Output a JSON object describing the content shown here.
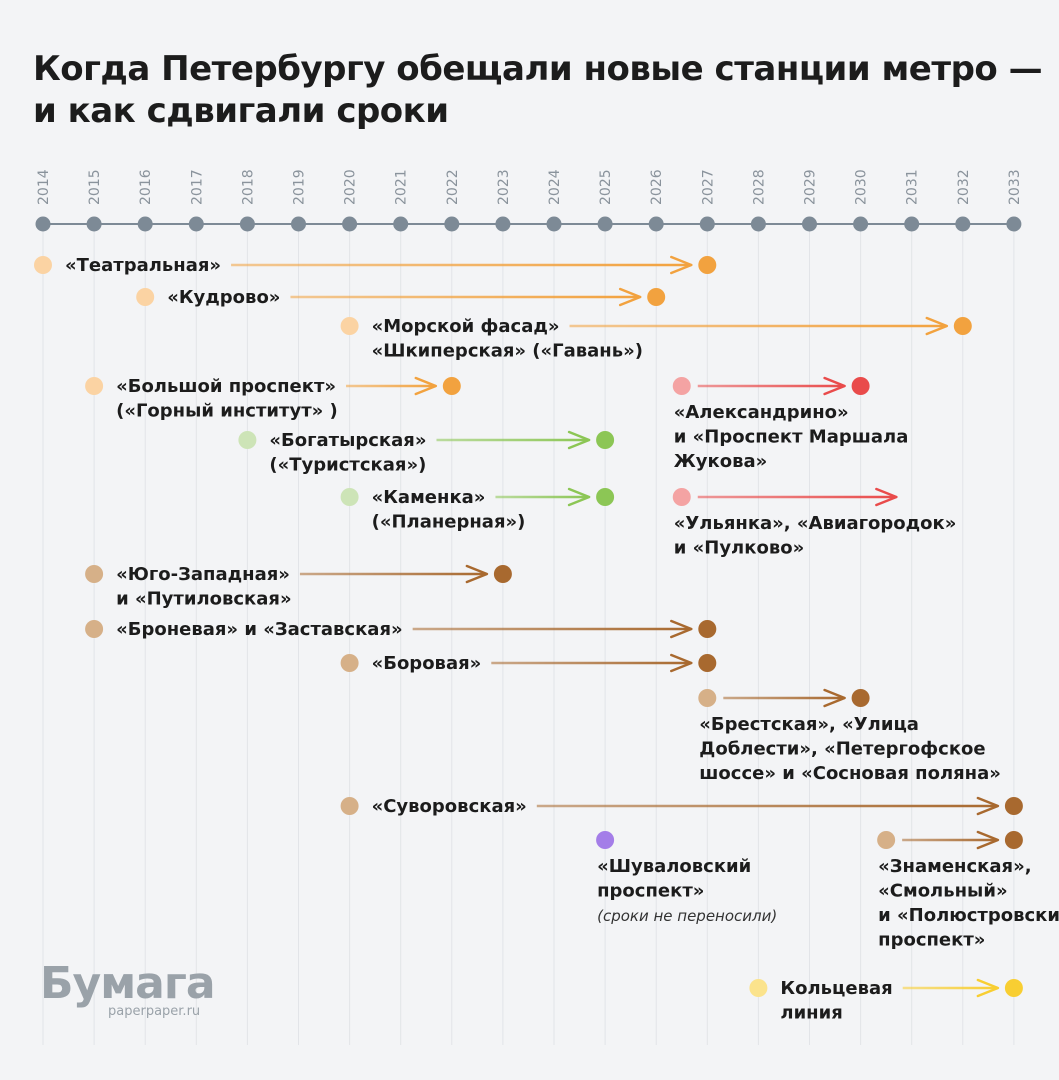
{
  "title": "Когда Петербургу обещали новые станции метро — и как сдвигали сроки",
  "logo": {
    "name": "Бумага",
    "url": "paperpaper.ru"
  },
  "colors": {
    "axis": "#7d8a96",
    "grid": "#e2e4e8",
    "orange": "#f2a23f",
    "orange_light": "#fbd3a3",
    "red": "#e94b4b",
    "red_light": "#f4a3a3",
    "green": "#8cc655",
    "green_light": "#cde4b7",
    "brown": "#a8692f",
    "brown_light": "#d6b088",
    "purple": "#a47de8",
    "yellow": "#f8ce32",
    "yellow_light": "#fbe38c"
  },
  "chart_data": {
    "type": "timeline",
    "title": "Когда Петербургу обещали новые станции метро — и как сдвигали сроки",
    "years": [
      2014,
      2015,
      2016,
      2017,
      2018,
      2019,
      2020,
      2021,
      2022,
      2023,
      2024,
      2025,
      2026,
      2027,
      2028,
      2029,
      2030,
      2031,
      2032,
      2033
    ],
    "items": [
      {
        "lines": [
          "«Театральная»"
        ],
        "from": 2014,
        "to": 2027,
        "color": "orange",
        "label_side": "right"
      },
      {
        "lines": [
          "«Кудрово»"
        ],
        "from": 2016,
        "to": 2026,
        "color": "orange",
        "label_side": "right"
      },
      {
        "lines": [
          "«Морской фасад»",
          "«Шкиперская» («Гавань»)"
        ],
        "from": 2020,
        "to": 2032,
        "color": "orange",
        "label_side": "right"
      },
      {
        "lines": [
          "«Большой проспект»",
          "(«Горный институт» )"
        ],
        "from": 2015,
        "to": 2022,
        "color": "orange",
        "label_side": "right"
      },
      {
        "lines": [
          "«Александрино»",
          "и «Проспект Маршала",
          "Жукова»"
        ],
        "from": 2026.5,
        "to": 2030,
        "color": "red",
        "label_side": "below"
      },
      {
        "lines": [
          "«Богатырская»",
          "(«Туристская»)"
        ],
        "from": 2018,
        "to": 2025,
        "color": "green",
        "label_side": "right"
      },
      {
        "lines": [
          "«Каменка»",
          "(«Планерная»)"
        ],
        "from": 2020,
        "to": 2025,
        "color": "green",
        "label_side": "right"
      },
      {
        "lines": [
          "«Ульянка», «Авиагородок»",
          "и «Пулково»"
        ],
        "from": 2026.5,
        "to": 2030.7,
        "color": "red",
        "label_side": "below",
        "open_end": true
      },
      {
        "lines": [
          "«Юго-Западная»",
          "и «Путиловская»"
        ],
        "from": 2015,
        "to": 2023,
        "color": "brown",
        "label_side": "right"
      },
      {
        "lines": [
          "«Броневая» и «Заставская»"
        ],
        "from": 2015,
        "to": 2027,
        "color": "brown",
        "label_side": "right"
      },
      {
        "lines": [
          "«Боровая»"
        ],
        "from": 2020,
        "to": 2027,
        "color": "brown",
        "label_side": "right"
      },
      {
        "lines": [
          "«Брестская», «Улица",
          "Доблести», «Петергофское",
          "шоссе» и «Сосновая поляна»"
        ],
        "from": 2027,
        "to": 2030,
        "color": "brown",
        "label_side": "below"
      },
      {
        "lines": [
          "«Суворовская»"
        ],
        "from": 2020,
        "to": 2033,
        "color": "brown",
        "label_side": "right"
      },
      {
        "lines": [
          "«Шуваловский",
          "проспект»"
        ],
        "from": 2025,
        "to": 2025,
        "color": "purple",
        "label_side": "below",
        "note": "(сроки не переносили)"
      },
      {
        "lines": [
          "«Знаменская»,",
          "«Смольный»",
          "и «Полюстровский",
          "проспект»"
        ],
        "from": 2030.5,
        "to": 2033,
        "color": "brown",
        "label_side": "below"
      },
      {
        "lines": [
          "Кольцевая",
          "линия"
        ],
        "from": 2028,
        "to": 2033,
        "color": "yellow",
        "label_side": "right"
      }
    ]
  }
}
